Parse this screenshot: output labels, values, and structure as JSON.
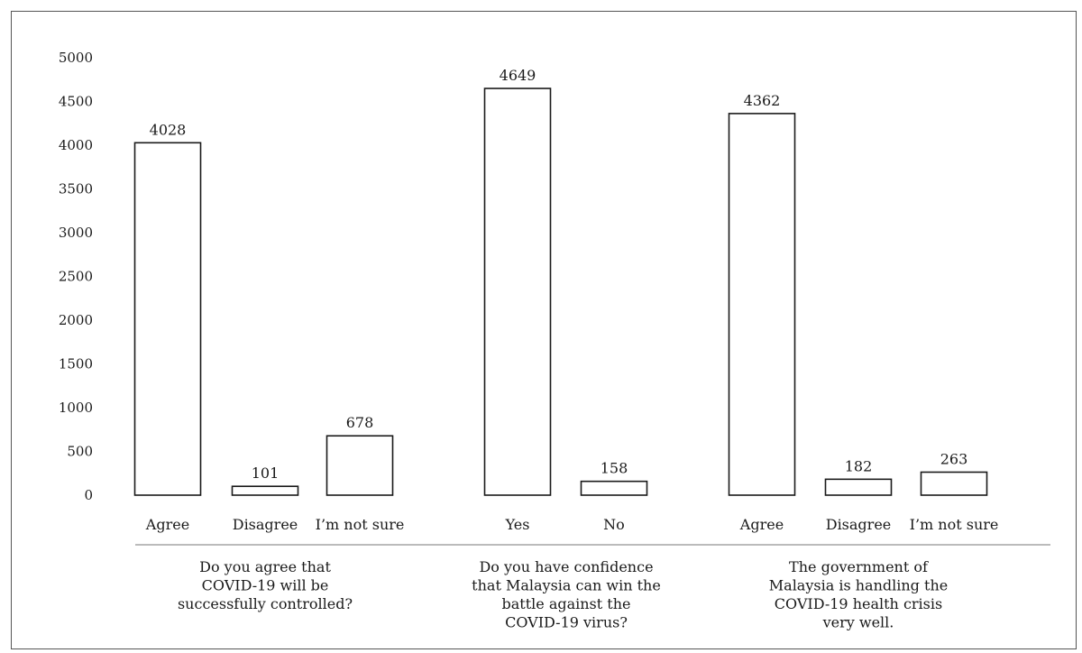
{
  "chart_data": {
    "type": "bar",
    "ylim": [
      0,
      5000
    ],
    "yticks": [
      0,
      500,
      1000,
      1500,
      2000,
      2500,
      3000,
      3500,
      4000,
      4500,
      5000
    ],
    "grid": false,
    "groups": [
      {
        "question": [
          "Do you agree that",
          "COVID-19 will be",
          "successfully controlled?"
        ],
        "categories": [
          "Agree",
          "Disagree",
          "I’m not sure"
        ],
        "values": [
          4028,
          101,
          678
        ]
      },
      {
        "question": [
          "Do you have confidence",
          "that Malaysia can win the",
          "battle against the",
          "COVID-19 virus?"
        ],
        "categories": [
          "Yes",
          "No"
        ],
        "values": [
          4649,
          158
        ]
      },
      {
        "question": [
          "The government of",
          "Malaysia is handling the",
          "COVID-19 health crisis",
          "very well."
        ],
        "categories": [
          "Agree",
          "Disagree",
          "I’m not sure"
        ],
        "values": [
          4362,
          182,
          263
        ]
      }
    ]
  }
}
